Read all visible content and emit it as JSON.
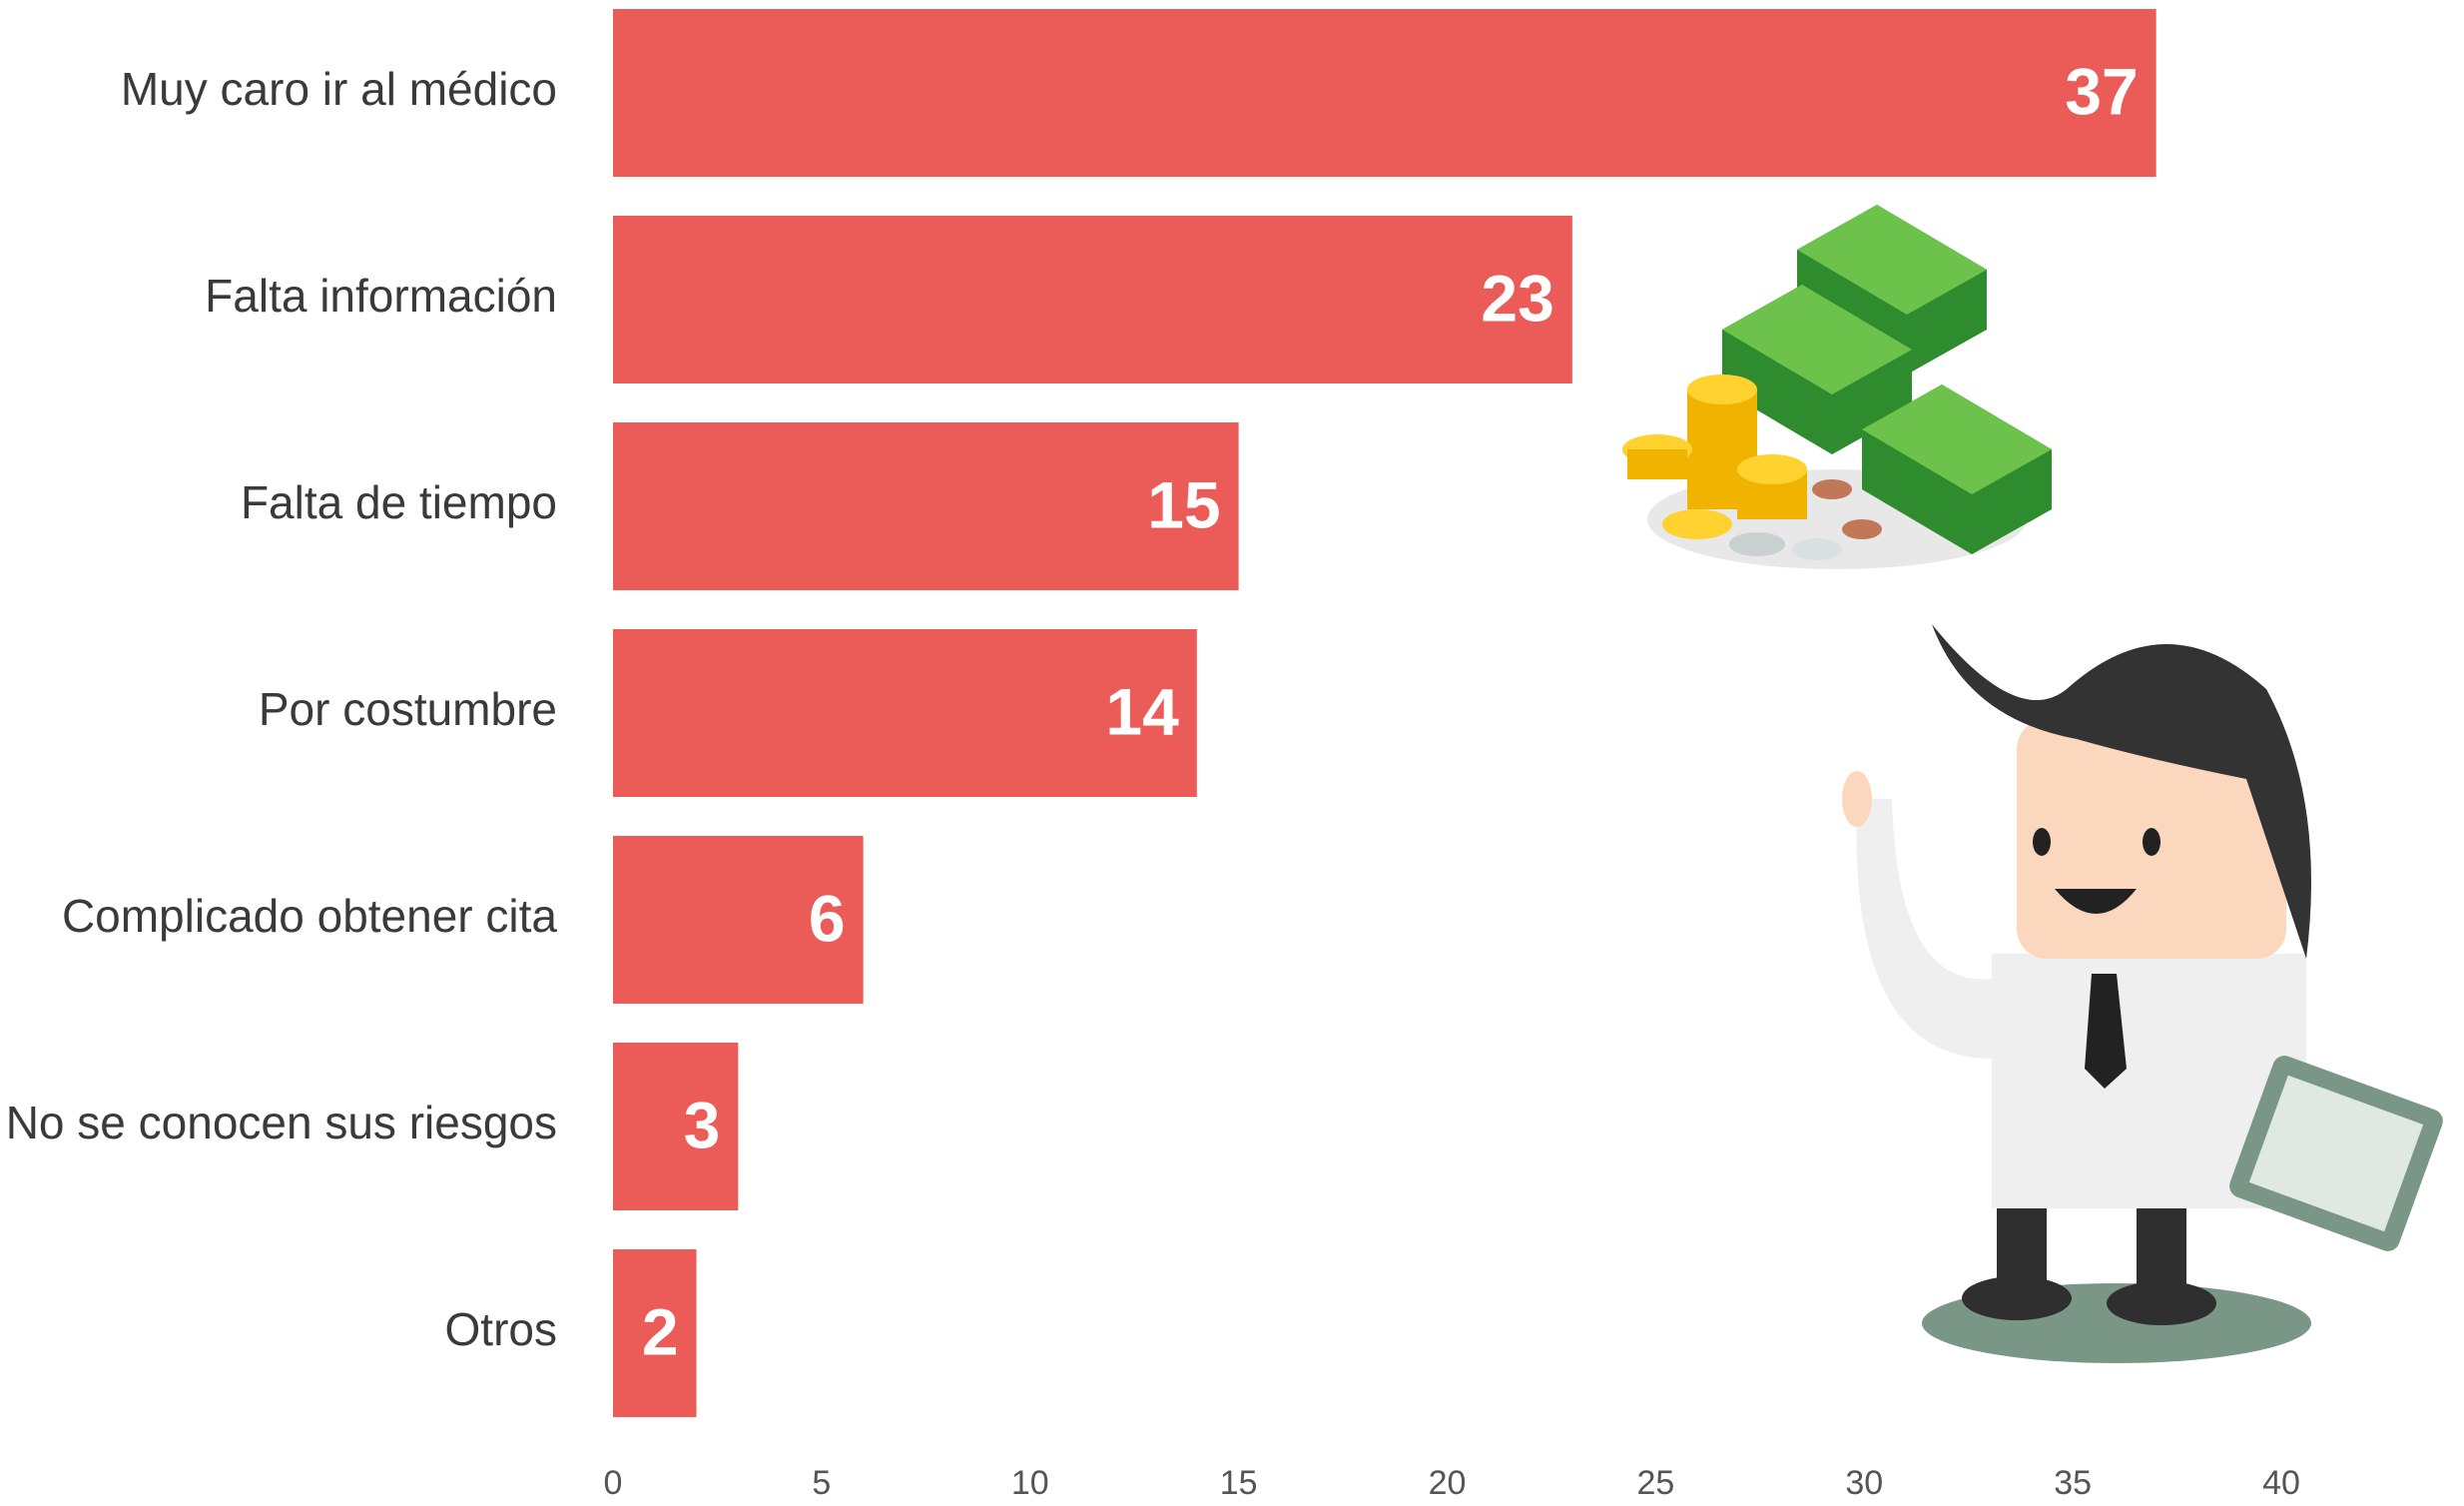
{
  "chart_data": {
    "type": "bar",
    "orientation": "horizontal",
    "categories": [
      "Muy caro ir al médico",
      "Falta información",
      "Falta de tiempo",
      "Por costumbre",
      "Complicado obtener cita",
      "No se conocen sus riesgos",
      "Otros"
    ],
    "values": [
      37,
      23,
      15,
      14,
      6,
      3,
      2
    ],
    "color": "#eb5b57",
    "xlim": [
      0,
      40
    ],
    "xticks": [
      0,
      5,
      10,
      15,
      20,
      25,
      30,
      35,
      40
    ],
    "grid": false
  }
}
